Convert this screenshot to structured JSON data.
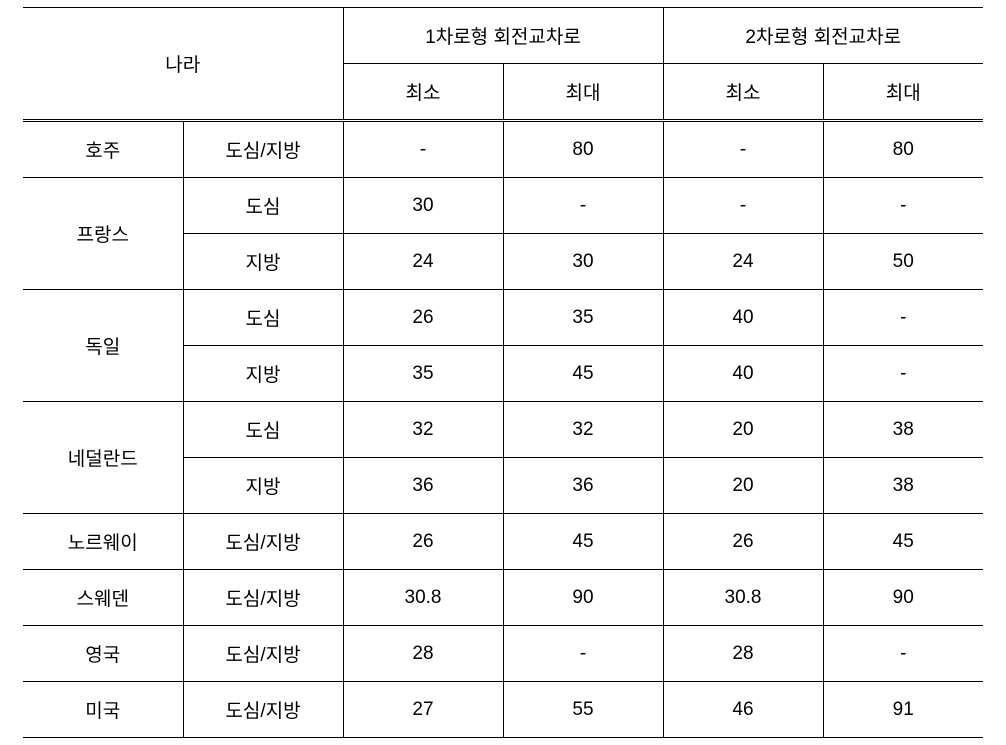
{
  "table": {
    "headers": {
      "country": "나라",
      "lane1": "1차로형 회전교차로",
      "lane2": "2차로형 회전교차로",
      "min": "최소",
      "max": "최대"
    },
    "rows": [
      {
        "country": "호주",
        "region": "도심/지방",
        "l1min": "-",
        "l1max": "80",
        "l2min": "-",
        "l2max": "80",
        "rowspan": 1
      },
      {
        "country": "프랑스",
        "region": "도심",
        "l1min": "30",
        "l1max": "-",
        "l2min": "-",
        "l2max": "-",
        "rowspan": 2
      },
      {
        "country": "",
        "region": "지방",
        "l1min": "24",
        "l1max": "30",
        "l2min": "24",
        "l2max": "50",
        "rowspan": 0
      },
      {
        "country": "독일",
        "region": "도심",
        "l1min": "26",
        "l1max": "35",
        "l2min": "40",
        "l2max": "-",
        "rowspan": 2
      },
      {
        "country": "",
        "region": "지방",
        "l1min": "35",
        "l1max": "45",
        "l2min": "40",
        "l2max": "-",
        "rowspan": 0
      },
      {
        "country": "네덜란드",
        "region": "도심",
        "l1min": "32",
        "l1max": "32",
        "l2min": "20",
        "l2max": "38",
        "rowspan": 2
      },
      {
        "country": "",
        "region": "지방",
        "l1min": "36",
        "l1max": "36",
        "l2min": "20",
        "l2max": "38",
        "rowspan": 0
      },
      {
        "country": "노르웨이",
        "region": "도심/지방",
        "l1min": "26",
        "l1max": "45",
        "l2min": "26",
        "l2max": "45",
        "rowspan": 1
      },
      {
        "country": "스웨덴",
        "region": "도심/지방",
        "l1min": "30.8",
        "l1max": "90",
        "l2min": "30.8",
        "l2max": "90",
        "rowspan": 1
      },
      {
        "country": "영국",
        "region": "도심/지방",
        "l1min": "28",
        "l1max": "-",
        "l2min": "28",
        "l2max": "-",
        "rowspan": 1
      },
      {
        "country": "미국",
        "region": "도심/지방",
        "l1min": "27",
        "l1max": "55",
        "l2min": "46",
        "l2max": "91",
        "rowspan": 1
      }
    ],
    "columnWidths": [
      "160px",
      "160px",
      "160px",
      "160px",
      "160px",
      "160px"
    ],
    "borderColor": "#000000",
    "backgroundColor": "#ffffff",
    "fontSize": 19
  }
}
